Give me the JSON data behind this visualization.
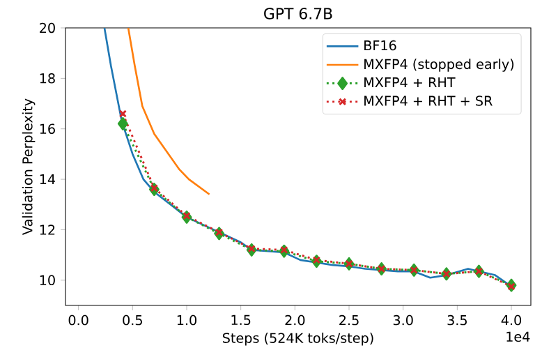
{
  "chart_data": {
    "type": "line",
    "title": "GPT 6.7B",
    "xlabel": "Steps (524K toks/step)",
    "ylabel": "Validation Perplexity",
    "annotations": [
      "1e4"
    ],
    "xlim": [
      -0.12,
      4.18
    ],
    "ylim": [
      9,
      20
    ],
    "xticks": [
      {
        "value": 0,
        "label": "0.0"
      },
      0.5,
      {
        "value": 1,
        "label": "1.0"
      },
      1.5,
      {
        "value": 2,
        "label": "2.0"
      },
      2.5,
      {
        "value": 3,
        "label": "3.0"
      },
      3.5,
      {
        "value": 4,
        "label": "4.0"
      }
    ],
    "yticks": [
      10,
      12,
      14,
      16,
      18,
      20
    ],
    "legend": "top right",
    "grid": false,
    "series": [
      {
        "name": "BF16",
        "color": "#1f77b4",
        "line_style": "solid",
        "marker": "none",
        "x": [
          0.24,
          0.3,
          0.4,
          0.5,
          0.6,
          0.7,
          0.85,
          1.0,
          1.2,
          1.35,
          1.5,
          1.6,
          1.75,
          1.9,
          2.05,
          2.2,
          2.35,
          2.5,
          2.65,
          2.8,
          2.95,
          3.1,
          3.25,
          3.4,
          3.6,
          3.85,
          4.0
        ],
        "values": [
          20,
          18.5,
          16.3,
          15.0,
          14.0,
          13.5,
          13.0,
          12.5,
          12.1,
          11.8,
          11.5,
          11.2,
          11.15,
          11.1,
          10.8,
          10.7,
          10.6,
          10.55,
          10.45,
          10.4,
          10.35,
          10.35,
          10.1,
          10.2,
          10.45,
          10.2,
          9.75
        ]
      },
      {
        "name": "MXFP4 (stopped early)",
        "color": "#ff7f0e",
        "line_style": "solid",
        "marker": "none",
        "x": [
          0.46,
          0.52,
          0.59,
          0.7,
          0.93,
          1.02,
          1.21
        ],
        "values": [
          20,
          18.5,
          16.9,
          15.8,
          14.4,
          14.0,
          13.4
        ]
      },
      {
        "name": "MXFP4 + RHT",
        "color": "#2ca02c",
        "line_style": "dotted",
        "marker": "diamond",
        "x": [
          0.41,
          0.7,
          1.0,
          1.3,
          1.6,
          1.9,
          2.2,
          2.5,
          2.8,
          3.1,
          3.4,
          3.7,
          4.0
        ],
        "values": [
          16.2,
          13.6,
          12.5,
          11.85,
          11.2,
          11.15,
          10.75,
          10.65,
          10.45,
          10.4,
          10.25,
          10.35,
          9.8
        ]
      },
      {
        "name": "MXFP4 + RHT + SR",
        "color": "#d62728",
        "line_style": "dotted",
        "marker": "cross",
        "x": [
          0.41,
          0.7,
          1.0,
          1.3,
          1.6,
          1.9,
          2.2,
          2.5,
          2.8,
          3.1,
          3.4,
          3.7,
          4.0
        ],
        "values": [
          16.6,
          13.65,
          12.55,
          11.9,
          11.25,
          11.2,
          10.8,
          10.65,
          10.45,
          10.4,
          10.25,
          10.35,
          9.75
        ]
      }
    ]
  }
}
